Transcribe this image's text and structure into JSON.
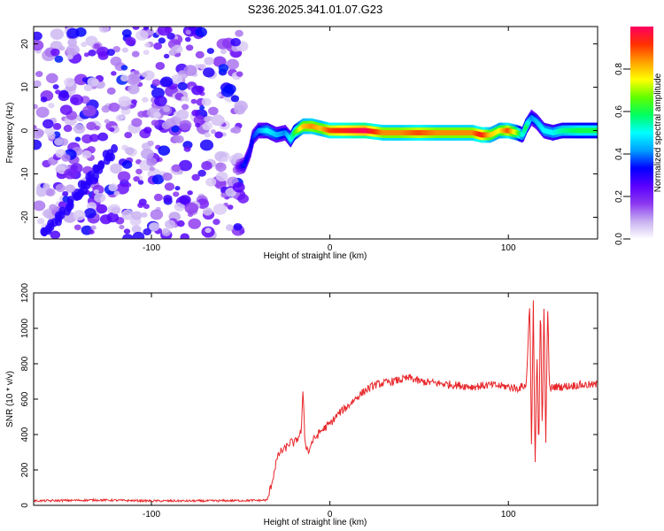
{
  "title": "S236.2025.341.01.07.G23",
  "chart_data": [
    {
      "type": "heatmap",
      "title": "S236.2025.341.01.07.G23",
      "xlabel": "Height of straight line (km)",
      "ylabel": "Frequency (Hz)",
      "xlim": [
        -166,
        150
      ],
      "ylim": [
        -25,
        24
      ],
      "x_ticks": [
        -100,
        0,
        100
      ],
      "y_ticks": [
        -20,
        -10,
        0,
        10,
        20
      ],
      "x_tick_labels": [
        "-100",
        "0",
        "100"
      ],
      "y_tick_labels": [
        "-20",
        "-10",
        "0",
        "10",
        "20"
      ],
      "noise_region_x": [
        -166,
        -48
      ],
      "ridge": {
        "x": [
          -52,
          -48,
          -45,
          -43,
          -40,
          -35,
          -30,
          -25,
          -22,
          -20,
          -15,
          -10,
          -5,
          0,
          10,
          20,
          30,
          40,
          50,
          60,
          70,
          80,
          85,
          90,
          95,
          100,
          105,
          108,
          110,
          113,
          116,
          120,
          125,
          130,
          140,
          150
        ],
        "frequency": [
          -8.5,
          -8,
          -5,
          -1.5,
          0,
          0,
          -1,
          -0.5,
          -2,
          -0.5,
          1,
          1,
          0.5,
          0,
          0,
          0,
          -0.5,
          -0.5,
          -0.5,
          -0.5,
          -0.5,
          -0.5,
          -1,
          -1,
          0,
          0,
          -0.5,
          -1,
          1,
          3,
          2,
          0,
          -0.5,
          0,
          0,
          0
        ],
        "amplitude": [
          0.2,
          0.35,
          0.3,
          0.35,
          0.4,
          0.5,
          0.45,
          0.4,
          0.5,
          0.6,
          0.8,
          0.85,
          0.8,
          0.9,
          0.95,
          1.0,
          0.85,
          0.85,
          0.9,
          0.85,
          0.85,
          0.85,
          0.95,
          0.8,
          0.75,
          0.9,
          0.7,
          0.5,
          0.6,
          0.4,
          0.45,
          0.5,
          0.5,
          0.55,
          0.6,
          0.6
        ]
      },
      "colorbar": {
        "label": "Normalized spectral amplitude",
        "range": [
          0,
          1
        ],
        "ticks": [
          0.0,
          0.2,
          0.4,
          0.6,
          0.8
        ],
        "tick_labels": [
          "0.0",
          "0.2",
          "0.4",
          "0.6",
          "0.8"
        ],
        "colors": [
          "#ffffff",
          "#c8b0f0",
          "#8c38f0",
          "#5a00ff",
          "#0000ff",
          "#00a0ff",
          "#00ffff",
          "#00ff60",
          "#60ff00",
          "#ffff00",
          "#ffa000",
          "#ff3000",
          "#ff0060"
        ]
      }
    },
    {
      "type": "line",
      "xlabel": "Height of straight line (km)",
      "ylabel": "SNR (10 * v/v)",
      "xlim": [
        -166,
        150
      ],
      "ylim": [
        0,
        1200
      ],
      "x_ticks": [
        -100,
        0,
        100
      ],
      "y_ticks": [
        0,
        200,
        400,
        600,
        800,
        1000,
        1200
      ],
      "x_tick_labels": [
        "-100",
        "0",
        "100"
      ],
      "y_tick_labels": [
        "0",
        "200",
        "400",
        "600",
        "800",
        "1000",
        "1200"
      ],
      "series": [
        {
          "name": "SNR",
          "color": "#e8262a",
          "x": [
            -166,
            -130,
            -100,
            -70,
            -40,
            -35,
            -32,
            -30,
            -28,
            -25,
            -22,
            -20,
            -18,
            -16,
            -15,
            -14,
            -12,
            -10,
            -5,
            0,
            5,
            10,
            15,
            20,
            25,
            30,
            35,
            40,
            45,
            50,
            60,
            70,
            80,
            90,
            100,
            105,
            110,
            112,
            113,
            114,
            115,
            116,
            117,
            118,
            119,
            120,
            121,
            122,
            123,
            125,
            130,
            140,
            150
          ],
          "values": [
            25,
            30,
            25,
            25,
            28,
            30,
            150,
            250,
            300,
            320,
            360,
            350,
            380,
            420,
            660,
            360,
            300,
            360,
            420,
            460,
            520,
            560,
            610,
            650,
            680,
            690,
            700,
            710,
            720,
            700,
            690,
            680,
            670,
            680,
            670,
            660,
            680,
            1150,
            300,
            1160,
            180,
            900,
            250,
            1190,
            400,
            1140,
            350,
            1150,
            650,
            670,
            670,
            680,
            680
          ]
        }
      ]
    }
  ]
}
